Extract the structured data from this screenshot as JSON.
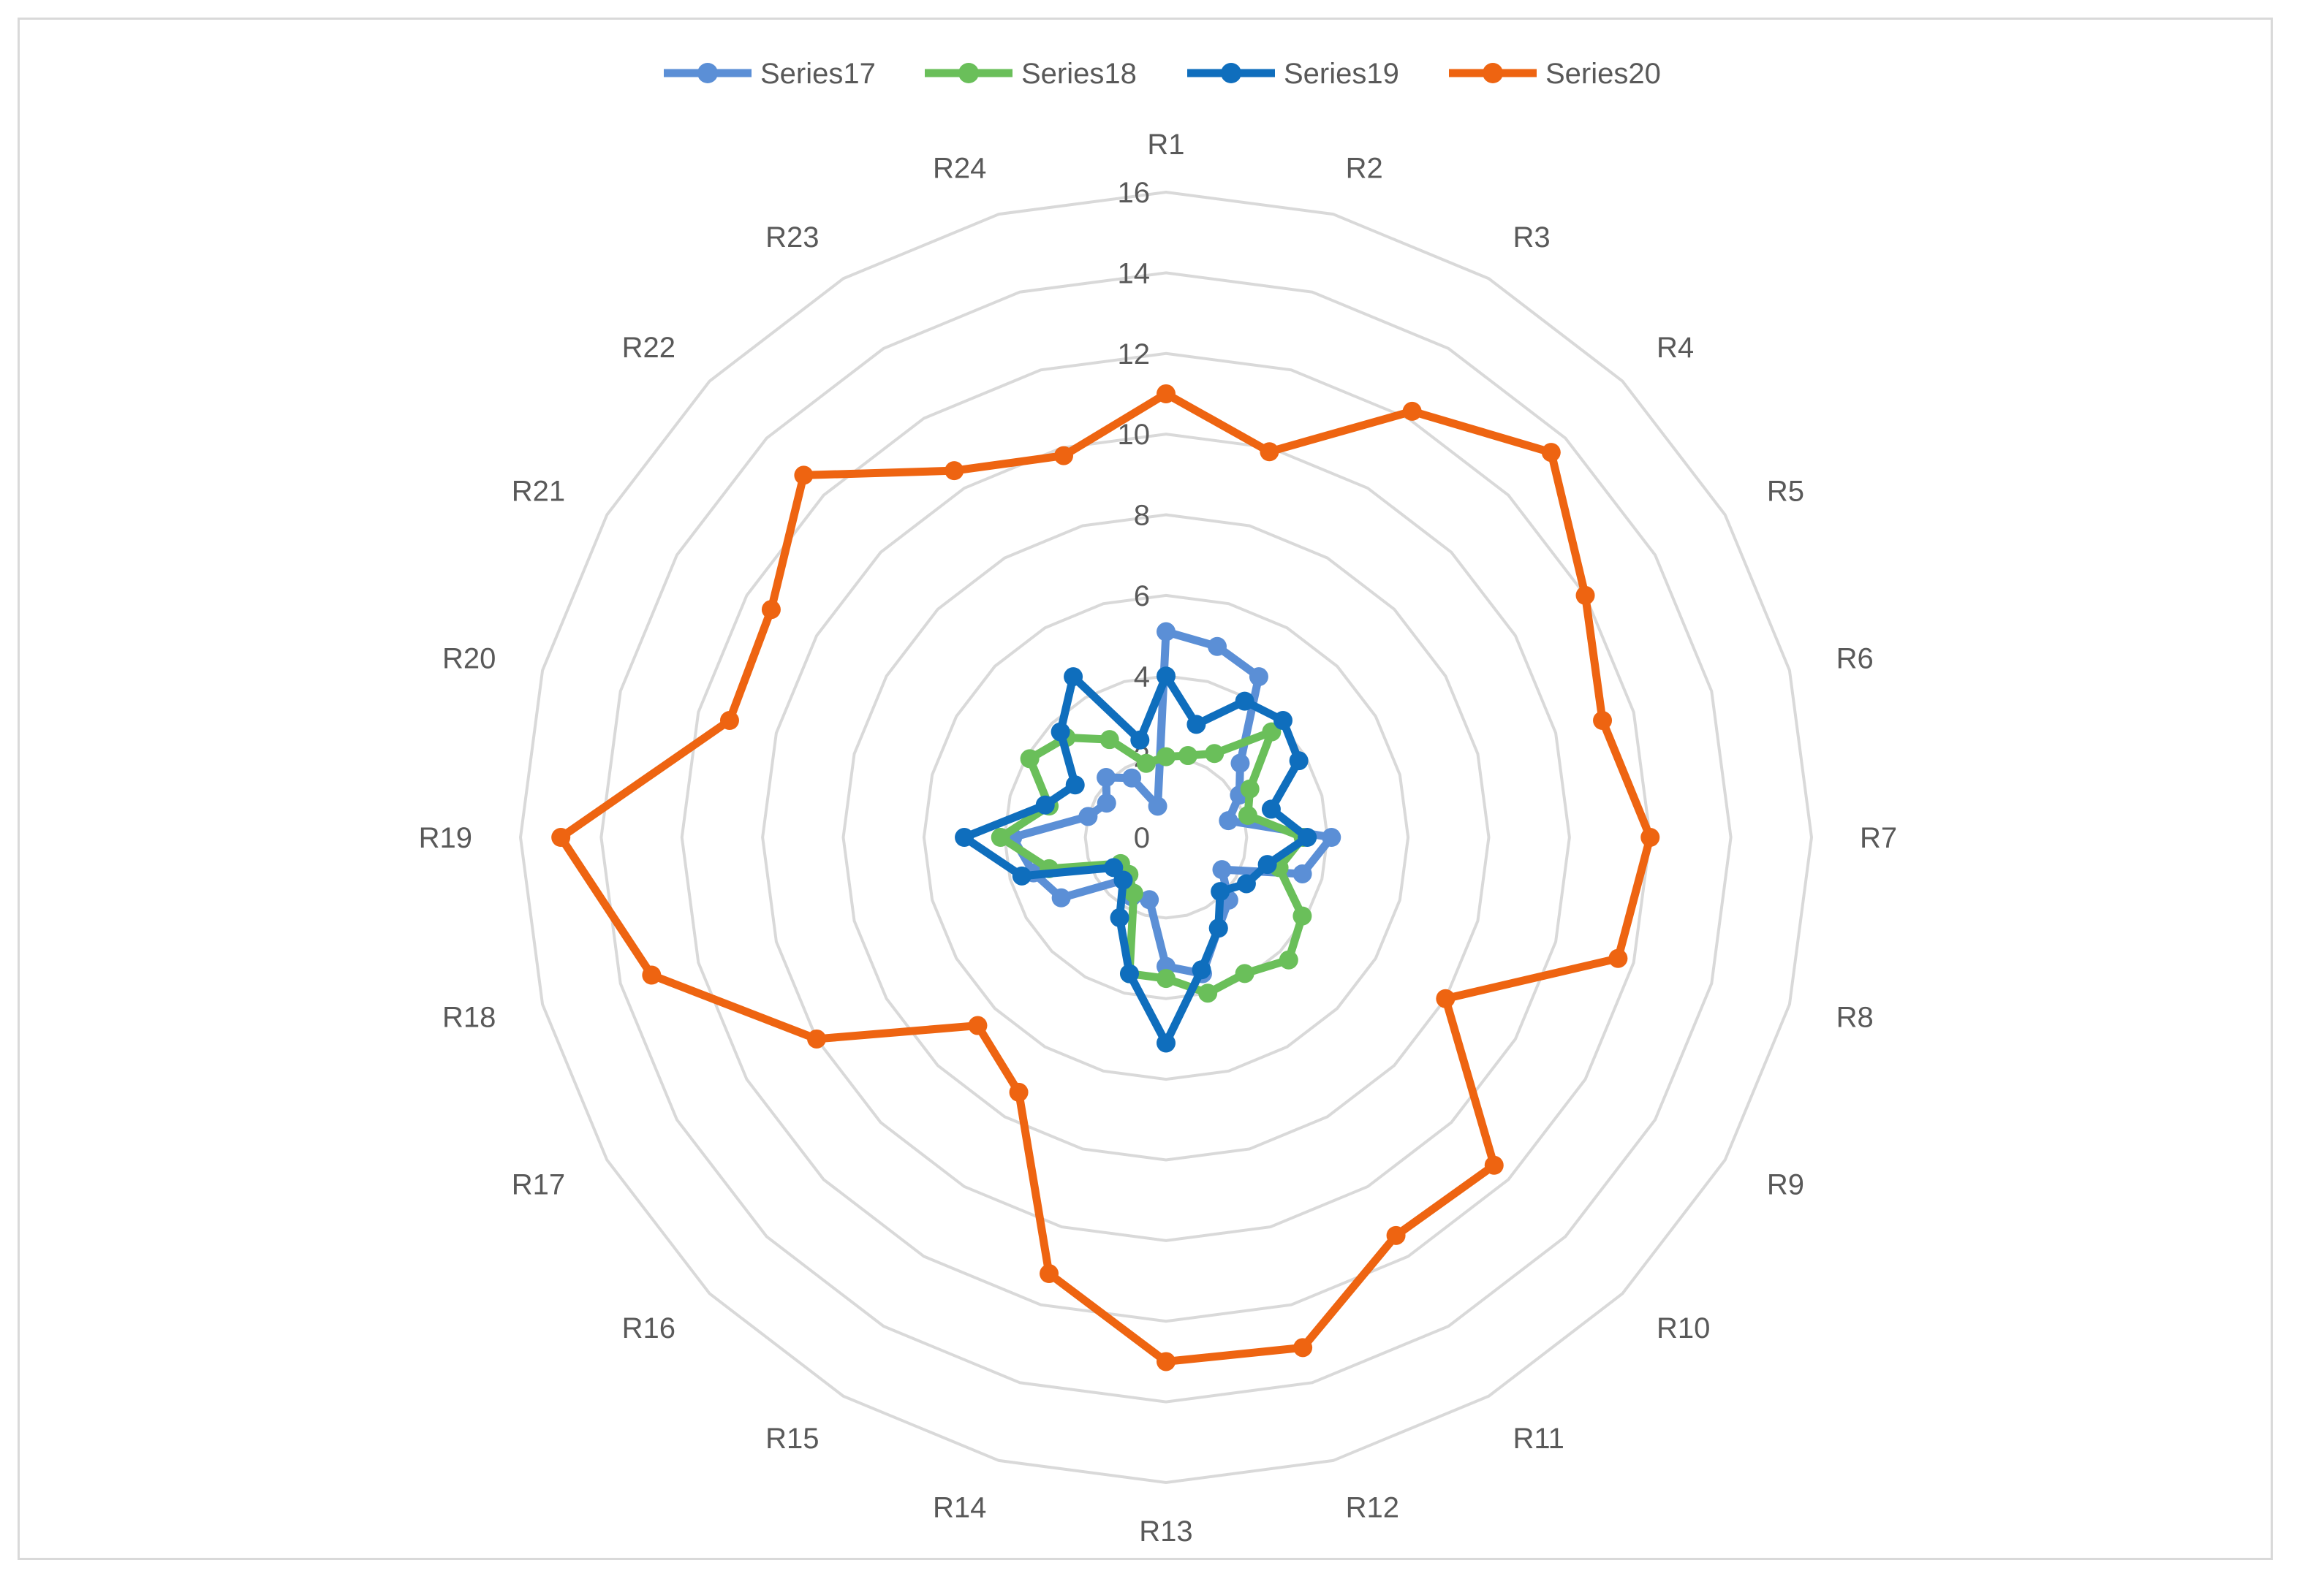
{
  "chart_data": {
    "type": "radar",
    "categories": [
      "R1",
      "R2",
      "R3",
      "R4",
      "R5",
      "R6",
      "R7",
      "R8",
      "R9",
      "R10",
      "R11",
      "R12",
      "R13",
      "R14",
      "R15",
      "R16",
      "R17",
      "R18",
      "R19",
      "R20",
      "R21",
      "R22",
      "R23",
      "R24"
    ],
    "r_ticks": [
      0,
      2,
      4,
      6,
      8,
      10,
      12,
      14,
      16
    ],
    "rlim": [
      0,
      16
    ],
    "legend_position": "top",
    "grid": true,
    "series": [
      {
        "name": "Series17",
        "color": "#5b8fd6",
        "values": [
          5.1,
          4.9,
          4.6,
          2.6,
          2.1,
          1.6,
          4.1,
          3.5,
          1.6,
          2.2,
          2.6,
          3.5,
          3.2,
          1.6,
          1.7,
          1.5,
          3.0,
          3.4,
          3.8,
          2.0,
          1.7,
          2.1,
          1.7,
          0.8
        ]
      },
      {
        "name": "Series18",
        "color": "#6abf5a",
        "values": [
          2.0,
          2.1,
          2.4,
          3.7,
          2.4,
          2.1,
          3.4,
          2.9,
          3.9,
          4.3,
          3.9,
          4.0,
          3.5,
          3.5,
          1.6,
          1.3,
          1.3,
          3.0,
          4.1,
          3.0,
          3.9,
          3.5,
          2.8,
          1.9
        ]
      },
      {
        "name": "Series19",
        "color": "#0f6ebd",
        "values": [
          4.0,
          2.9,
          3.9,
          4.1,
          3.8,
          2.7,
          3.5,
          2.6,
          2.3,
          1.9,
          2.6,
          3.4,
          5.1,
          3.5,
          2.3,
          1.5,
          1.5,
          3.7,
          5.0,
          3.1,
          2.6,
          3.7,
          4.6,
          2.5
        ]
      },
      {
        "name": "Series20",
        "color": "#ee6411",
        "values": [
          11.0,
          9.9,
          12.2,
          13.5,
          12.0,
          11.2,
          12.0,
          11.6,
          8.0,
          11.5,
          11.4,
          13.1,
          13.0,
          11.2,
          7.3,
          6.6,
          10.0,
          13.2,
          15.0,
          11.2,
          11.3,
          12.7,
          10.5,
          9.8
        ]
      }
    ]
  }
}
